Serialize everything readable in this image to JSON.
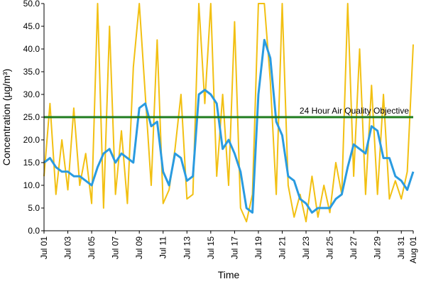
{
  "chart_data": {
    "type": "line",
    "x_label": "Time",
    "y_label": "Concentration (µg/m³)",
    "x": [
      0,
      0.5,
      1,
      1.5,
      2,
      2.5,
      3,
      3.5,
      4,
      4.5,
      5,
      5.5,
      6,
      6.5,
      7,
      7.5,
      8,
      8.5,
      9,
      9.5,
      10,
      10.5,
      11,
      11.5,
      12,
      12.5,
      13,
      13.5,
      14,
      14.5,
      15,
      15.5,
      16,
      16.5,
      17,
      17.5,
      18,
      18.5,
      19,
      19.5,
      20,
      20.5,
      21,
      21.5,
      22,
      22.5,
      23,
      23.5,
      24,
      24.5,
      25,
      25.5,
      26,
      26.5,
      27,
      27.5,
      28,
      28.5,
      29,
      29.5,
      30,
      30.5,
      31
    ],
    "series": [
      {
        "color": "#f2c012",
        "width": 2,
        "values": [
          12,
          28,
          8,
          20,
          9,
          27,
          10,
          17,
          6,
          50,
          5,
          45,
          8,
          22,
          6,
          36,
          50,
          30,
          10,
          42,
          6,
          9,
          18,
          30,
          7,
          8,
          50,
          28,
          50,
          12,
          30,
          10,
          46,
          5,
          2,
          8,
          50,
          50,
          33,
          8,
          50,
          10,
          3,
          8,
          2,
          12,
          3,
          10,
          4,
          15,
          8,
          50,
          12,
          40,
          8,
          32,
          8,
          30,
          7,
          11,
          7,
          13,
          41
        ]
      },
      {
        "color": "#2a9be0",
        "width": 3,
        "values": [
          15,
          16,
          14,
          13,
          13,
          12,
          12,
          11,
          10,
          14,
          17,
          18,
          15,
          17,
          16,
          15,
          27,
          28,
          23,
          24,
          13,
          10,
          17,
          16,
          11,
          12,
          30,
          31,
          30,
          28,
          18,
          20,
          17,
          13,
          5,
          4,
          30,
          42,
          38,
          24,
          21,
          12,
          11,
          7,
          6,
          4,
          5,
          5,
          5,
          7,
          8,
          14,
          19,
          18,
          17,
          23,
          22,
          16,
          16,
          12,
          11,
          9,
          13
        ]
      }
    ],
    "reference_lines": [
      {
        "value": 25,
        "label": "24 Hour Air Quality Objective",
        "color": "#1f7d1f"
      }
    ],
    "xlim": [
      0,
      31
    ],
    "xticks": [
      {
        "value": 0,
        "label": "Jul 01"
      },
      {
        "value": 2,
        "label": "Jul 03"
      },
      {
        "value": 4,
        "label": "Jul 05"
      },
      {
        "value": 6,
        "label": "Jul 07"
      },
      {
        "value": 8,
        "label": "Jul 09"
      },
      {
        "value": 10,
        "label": "Jul 11"
      },
      {
        "value": 12,
        "label": "Jul 13"
      },
      {
        "value": 14,
        "label": "Jul 15"
      },
      {
        "value": 16,
        "label": "Jul 17"
      },
      {
        "value": 18,
        "label": "Jul 19"
      },
      {
        "value": 20,
        "label": "Jul 21"
      },
      {
        "value": 22,
        "label": "Jul 23"
      },
      {
        "value": 24,
        "label": "Jul 25"
      },
      {
        "value": 26,
        "label": "Jul 27"
      },
      {
        "value": 28,
        "label": "Jul 29"
      },
      {
        "value": 30,
        "label": "Jul 31"
      },
      {
        "value": 31,
        "label": "Aug 01"
      }
    ],
    "ylim": [
      0,
      50
    ],
    "yticks": [
      {
        "value": 0,
        "label": "0.0"
      },
      {
        "value": 5,
        "label": "5.0"
      },
      {
        "value": 10,
        "label": "10.0"
      },
      {
        "value": 15,
        "label": "15.0"
      },
      {
        "value": 20,
        "label": "20.0"
      },
      {
        "value": 25,
        "label": "25.0"
      },
      {
        "value": 30,
        "label": "30.0"
      },
      {
        "value": 35,
        "label": "35.0"
      },
      {
        "value": 40,
        "label": "40.0"
      },
      {
        "value": 45,
        "label": "45.0"
      },
      {
        "value": 50,
        "label": "50.0"
      }
    ],
    "grid": false
  }
}
